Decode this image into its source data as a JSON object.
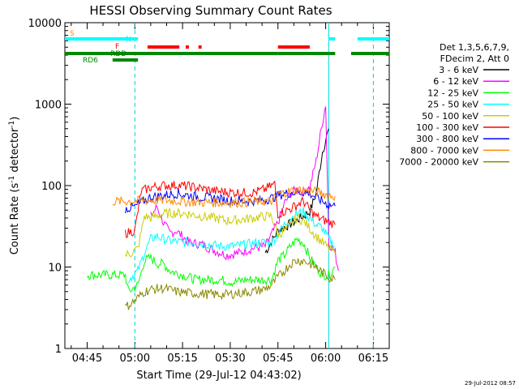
{
  "chart_data": {
    "type": "line",
    "title": "HESSI Observing Summary Count Rates",
    "xlabel": "Start Time (29-Jul-12 04:43:02)",
    "ylabel_main": "Count Rate (s",
    "ylabel_sup1": "-1",
    "ylabel_mid": " detector",
    "ylabel_sup2": "-1",
    "ylabel_end": ")",
    "yscale": "log",
    "ylim": [
      1,
      10000
    ],
    "xlim_minutes": [
      -5,
      97
    ],
    "y_ticks": [
      {
        "value": 1,
        "label": "1"
      },
      {
        "value": 10,
        "label": "10"
      },
      {
        "value": 100,
        "label": "100"
      },
      {
        "value": 1000,
        "label": "1000"
      },
      {
        "value": 10000,
        "label": "10000"
      }
    ],
    "x_ticks": [
      {
        "minute": 2,
        "label": "04:45"
      },
      {
        "minute": 17,
        "label": "05:00"
      },
      {
        "minute": 32,
        "label": "05:15"
      },
      {
        "minute": 47,
        "label": "05:30"
      },
      {
        "minute": 62,
        "label": "05:45"
      },
      {
        "minute": 77,
        "label": "06:00"
      },
      {
        "minute": 92,
        "label": "06:15"
      }
    ],
    "legend_header": [
      "Det 1,3,5,6,7,9,",
      "FDecim 2, Att 0"
    ],
    "legend_placement": "top-right outside",
    "series": [
      {
        "name": "3 - 6 keV",
        "color": "#000000",
        "points": [
          [
            58,
            15
          ],
          [
            62,
            28
          ],
          [
            66,
            34
          ],
          [
            70,
            42
          ],
          [
            72,
            48
          ],
          [
            74,
            80
          ],
          [
            76,
            260
          ],
          [
            78,
            500
          ]
        ]
      },
      {
        "name": "6 - 12 keV",
        "color": "#ff00ff",
        "points": [
          [
            22,
            42
          ],
          [
            24,
            55
          ],
          [
            26,
            35
          ],
          [
            28,
            26
          ],
          [
            30,
            28
          ],
          [
            34,
            20
          ],
          [
            38,
            19
          ],
          [
            42,
            16
          ],
          [
            46,
            14
          ],
          [
            50,
            15
          ],
          [
            54,
            17
          ],
          [
            58,
            18
          ],
          [
            62,
            35
          ],
          [
            64,
            60
          ],
          [
            66,
            80
          ],
          [
            68,
            90
          ],
          [
            70,
            85
          ],
          [
            72,
            95
          ],
          [
            74,
            200
          ],
          [
            76,
            600
          ],
          [
            77,
            1000
          ],
          [
            78,
            20
          ],
          [
            80,
            15
          ],
          [
            81,
            9
          ]
        ]
      },
      {
        "name": "12 - 25 keV",
        "color": "#00ff00",
        "points": [
          [
            2,
            8
          ],
          [
            6,
            8
          ],
          [
            10,
            8
          ],
          [
            14,
            8
          ],
          [
            15,
            5
          ],
          [
            18,
            6
          ],
          [
            20,
            12
          ],
          [
            22,
            13
          ],
          [
            24,
            11
          ],
          [
            26,
            11
          ],
          [
            28,
            9
          ],
          [
            32,
            8
          ],
          [
            36,
            7
          ],
          [
            40,
            7
          ],
          [
            44,
            7
          ],
          [
            48,
            6.5
          ],
          [
            52,
            7
          ],
          [
            56,
            7
          ],
          [
            60,
            7
          ],
          [
            62,
            12
          ],
          [
            64,
            14
          ],
          [
            66,
            18
          ],
          [
            68,
            22
          ],
          [
            70,
            20
          ],
          [
            72,
            13
          ],
          [
            74,
            10
          ],
          [
            76,
            8
          ],
          [
            78,
            8
          ],
          [
            80,
            10
          ]
        ]
      },
      {
        "name": "25 - 50 keV",
        "color": "#00ffff",
        "points": [
          [
            15,
            7
          ],
          [
            18,
            9
          ],
          [
            20,
            15
          ],
          [
            22,
            22
          ],
          [
            24,
            24
          ],
          [
            26,
            22
          ],
          [
            28,
            21
          ],
          [
            32,
            20
          ],
          [
            36,
            20
          ],
          [
            40,
            19
          ],
          [
            44,
            18
          ],
          [
            48,
            18
          ],
          [
            52,
            19
          ],
          [
            56,
            20
          ],
          [
            60,
            20
          ],
          [
            62,
            25
          ],
          [
            64,
            33
          ],
          [
            66,
            40
          ],
          [
            68,
            45
          ],
          [
            70,
            48
          ],
          [
            72,
            40
          ],
          [
            74,
            33
          ],
          [
            76,
            30
          ],
          [
            78,
            22
          ],
          [
            80,
            18
          ]
        ]
      },
      {
        "name": "50 - 100 keV",
        "color": "#cccc00",
        "points": [
          [
            14,
            14
          ],
          [
            16,
            15
          ],
          [
            18,
            17
          ],
          [
            20,
            42
          ],
          [
            22,
            40
          ],
          [
            26,
            45
          ],
          [
            30,
            46
          ],
          [
            34,
            45
          ],
          [
            38,
            42
          ],
          [
            42,
            40
          ],
          [
            46,
            37
          ],
          [
            50,
            38
          ],
          [
            54,
            40
          ],
          [
            58,
            42
          ],
          [
            60,
            42
          ],
          [
            62,
            25
          ],
          [
            64,
            28
          ],
          [
            66,
            33
          ],
          [
            68,
            40
          ],
          [
            70,
            37
          ],
          [
            72,
            30
          ],
          [
            74,
            24
          ],
          [
            76,
            20
          ],
          [
            78,
            17
          ],
          [
            80,
            15
          ]
        ]
      },
      {
        "name": "100 - 300 keV",
        "color": "#ff0000",
        "points": [
          [
            14,
            26
          ],
          [
            17,
            28
          ],
          [
            19,
            85
          ],
          [
            22,
            95
          ],
          [
            26,
            100
          ],
          [
            30,
            101
          ],
          [
            34,
            98
          ],
          [
            38,
            92
          ],
          [
            42,
            86
          ],
          [
            46,
            83
          ],
          [
            50,
            82
          ],
          [
            54,
            82
          ],
          [
            58,
            90
          ],
          [
            60,
            100
          ],
          [
            61,
            105
          ],
          [
            62,
            45
          ],
          [
            64,
            48
          ],
          [
            66,
            52
          ],
          [
            68,
            58
          ],
          [
            70,
            65
          ],
          [
            72,
            50
          ],
          [
            74,
            42
          ],
          [
            76,
            38
          ],
          [
            78,
            36
          ],
          [
            80,
            33
          ]
        ]
      },
      {
        "name": "300 - 800 keV",
        "color": "#0000ff",
        "points": [
          [
            14,
            52
          ],
          [
            17,
            55
          ],
          [
            19,
            62
          ],
          [
            22,
            72
          ],
          [
            26,
            76
          ],
          [
            30,
            80
          ],
          [
            34,
            76
          ],
          [
            38,
            72
          ],
          [
            42,
            70
          ],
          [
            46,
            66
          ],
          [
            50,
            64
          ],
          [
            54,
            65
          ],
          [
            58,
            67
          ],
          [
            60,
            70
          ],
          [
            62,
            76
          ],
          [
            64,
            79
          ],
          [
            66,
            82
          ],
          [
            68,
            83
          ],
          [
            70,
            83
          ],
          [
            72,
            80
          ],
          [
            74,
            72
          ],
          [
            76,
            64
          ],
          [
            78,
            58
          ],
          [
            80,
            56
          ]
        ]
      },
      {
        "name": "800 - 7000 keV",
        "color": "#ff8800",
        "points": [
          [
            10,
            64
          ],
          [
            14,
            64
          ],
          [
            18,
            65
          ],
          [
            22,
            66
          ],
          [
            26,
            66
          ],
          [
            30,
            65
          ],
          [
            34,
            63
          ],
          [
            38,
            62
          ],
          [
            42,
            62
          ],
          [
            46,
            62
          ],
          [
            50,
            62
          ],
          [
            54,
            63
          ],
          [
            58,
            64
          ],
          [
            60,
            64
          ],
          [
            62,
            78
          ],
          [
            64,
            82
          ],
          [
            66,
            86
          ],
          [
            68,
            88
          ],
          [
            70,
            88
          ],
          [
            72,
            87
          ],
          [
            74,
            84
          ],
          [
            76,
            80
          ],
          [
            78,
            76
          ],
          [
            80,
            74
          ]
        ]
      },
      {
        "name": "7000 - 20000 keV",
        "color": "#888800",
        "points": [
          [
            14,
            3.2
          ],
          [
            16,
            3.6
          ],
          [
            18,
            4.2
          ],
          [
            20,
            5
          ],
          [
            22,
            5.3
          ],
          [
            26,
            5.5
          ],
          [
            30,
            5
          ],
          [
            34,
            4.8
          ],
          [
            38,
            4.7
          ],
          [
            42,
            4.6
          ],
          [
            46,
            4.6
          ],
          [
            50,
            4.8
          ],
          [
            54,
            5
          ],
          [
            58,
            5.4
          ],
          [
            60,
            6
          ],
          [
            62,
            7.5
          ],
          [
            64,
            9
          ],
          [
            66,
            11
          ],
          [
            68,
            12
          ],
          [
            70,
            12
          ],
          [
            72,
            11
          ],
          [
            74,
            10
          ],
          [
            76,
            8.5
          ],
          [
            78,
            7.5
          ],
          [
            80,
            7
          ]
        ]
      }
    ],
    "flags": [
      {
        "name": "S",
        "color": "#ff8800",
        "row": "S"
      },
      {
        "name": "N",
        "color": "#00ffff",
        "row": "N",
        "segments": [
          [
            -5,
            18
          ],
          [
            78,
            80
          ],
          [
            87,
            97
          ]
        ]
      },
      {
        "name": "F",
        "color": "#ff0000",
        "row": "F",
        "segments": [
          [
            21,
            31
          ],
          [
            33,
            34
          ],
          [
            37,
            38
          ],
          [
            62,
            72
          ]
        ]
      },
      {
        "name": "RDD",
        "color": "#008800",
        "row": "RDD",
        "segments": [
          [
            -5,
            62
          ],
          [
            62,
            80
          ],
          [
            85,
            97
          ]
        ]
      },
      {
        "name": "RD6",
        "color": "#008800",
        "row": "RD6",
        "segments": [
          [
            10,
            18
          ]
        ]
      }
    ],
    "vlines_cyan_dashed_minutes": [
      17,
      92
    ],
    "vline_cyan_solid_minute": 78,
    "footer_date": "29-Jul-2012 08:57"
  }
}
